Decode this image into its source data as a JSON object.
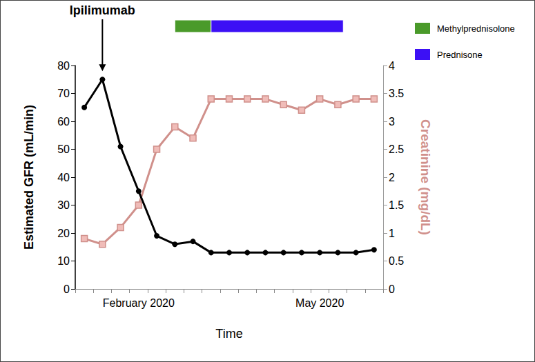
{
  "chart_data": {
    "type": "line",
    "x_label": "Time",
    "y_label": "Estimated GFR (mL/min)",
    "y2_label": "Creatinine (mg/dL)",
    "categories": [
      null,
      null,
      null,
      "February 2020",
      null,
      null,
      null,
      null,
      null,
      null,
      null,
      null,
      null,
      "May 2020",
      null,
      null,
      null
    ],
    "series": [
      {
        "color": "#000000",
        "marker": "circle",
        "values": [
          65,
          75,
          51,
          35,
          19,
          16,
          17,
          13,
          13,
          13,
          13,
          13,
          13,
          13,
          13,
          13,
          14
        ]
      },
      {
        "color": "#d0908b",
        "marker": "square",
        "axis": "y2",
        "values": [
          0.9,
          0.8,
          1.1,
          1.5,
          2.5,
          2.9,
          2.7,
          3.4,
          3.4,
          3.4,
          3.4,
          3.3,
          3.2,
          3.4,
          3.3,
          3.4,
          3.4
        ]
      }
    ],
    "ylim": [
      0,
      80
    ],
    "yticks": [
      0,
      10,
      20,
      30,
      40,
      50,
      60,
      70,
      80
    ],
    "y2lim": [
      0,
      4
    ],
    "y2ticks": [
      0,
      0.5,
      1,
      1.5,
      2,
      2.5,
      3,
      3.5,
      4
    ],
    "grid": false,
    "annotations": [
      {
        "text": "Ipilimumab",
        "category_index": 1
      }
    ],
    "treatments": [
      {
        "name": "Methylprednisolone",
        "color": "#4a9a2a",
        "start": 5,
        "end": 7
      },
      {
        "name": "Prednisone",
        "color": "#3c10f5",
        "start": 7,
        "end": 14.3
      }
    ]
  }
}
